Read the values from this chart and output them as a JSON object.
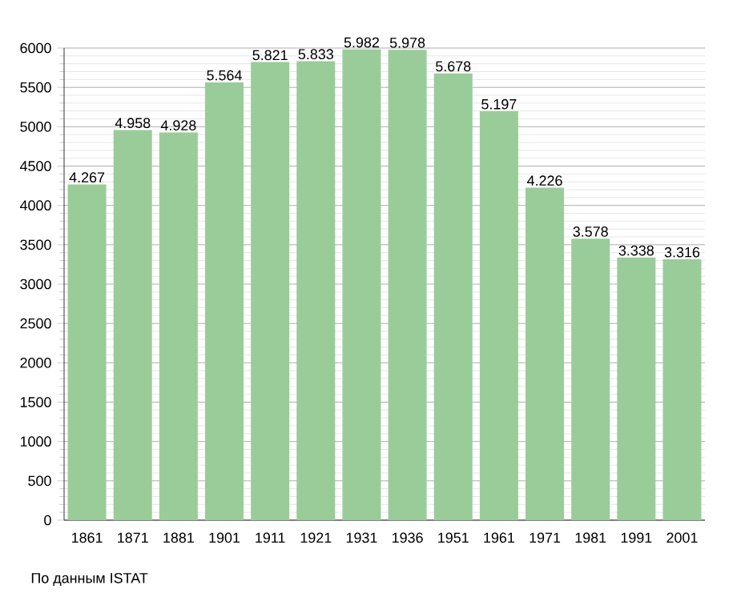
{
  "chart_data": {
    "type": "bar",
    "categories": [
      "1861",
      "1871",
      "1881",
      "1901",
      "1911",
      "1921",
      "1931",
      "1936",
      "1951",
      "1961",
      "1971",
      "1981",
      "1991",
      "2001"
    ],
    "values": [
      4267,
      4958,
      4928,
      5564,
      5821,
      5833,
      5982,
      5978,
      5678,
      5197,
      4226,
      3578,
      3338,
      3316
    ],
    "value_labels": [
      "4.267",
      "4.958",
      "4.928",
      "5.564",
      "5.821",
      "5.833",
      "5.982",
      "5.978",
      "5.678",
      "5.197",
      "4.226",
      "3.578",
      "3.338",
      "3.316"
    ],
    "color": "#99cc99",
    "ylim": [
      0,
      6000
    ],
    "yticks": [
      0,
      500,
      1000,
      1500,
      2000,
      2500,
      3000,
      3500,
      4000,
      4500,
      5000,
      5500,
      6000
    ],
    "grid": "y",
    "annotations": [
      "По данным ISTAT"
    ]
  }
}
